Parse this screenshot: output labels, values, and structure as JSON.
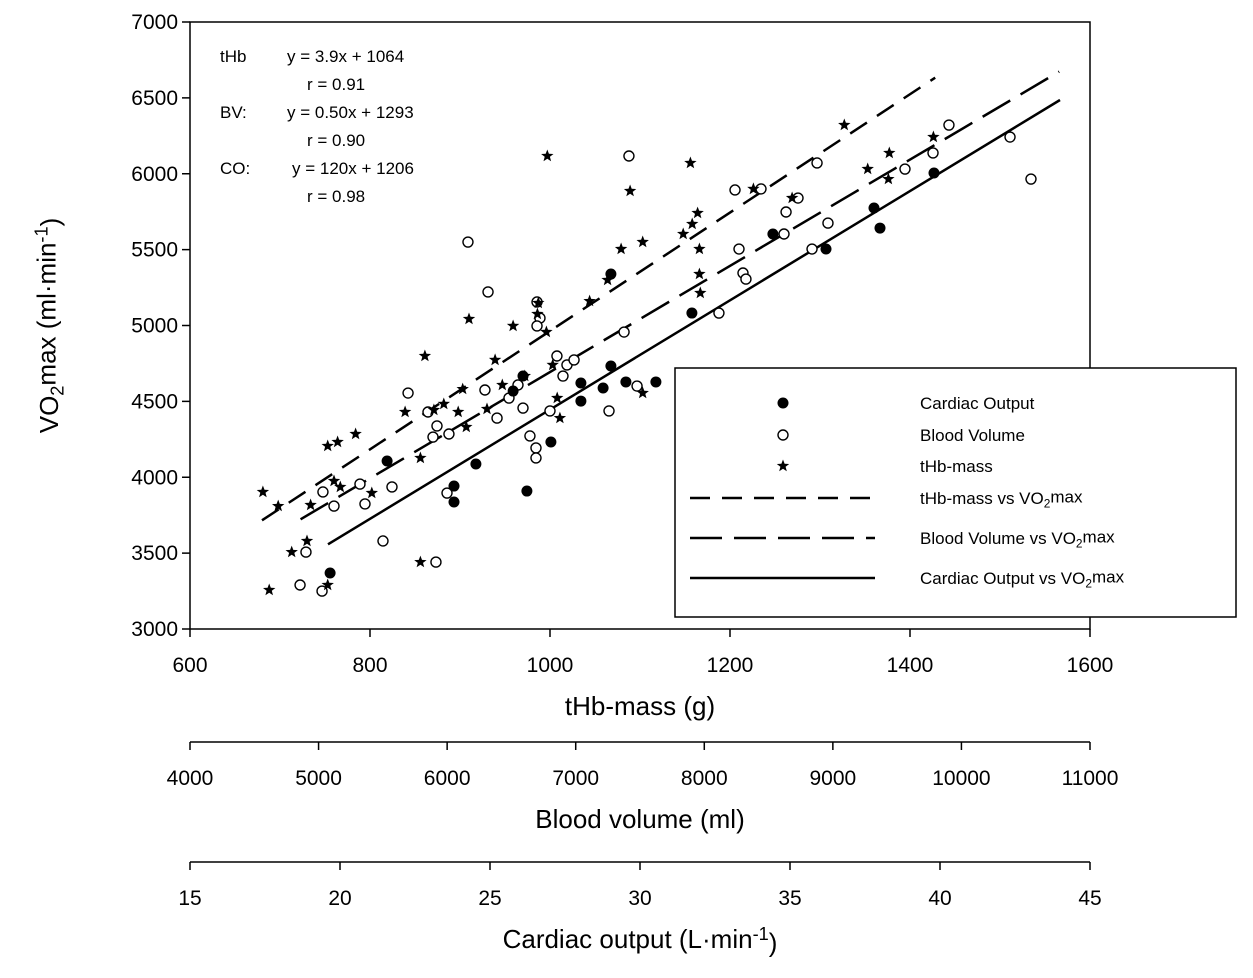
{
  "chart_data": {
    "type": "scatter",
    "ylabel": "VO2max (ml·min-1)",
    "ylabel_parts": {
      "main": "VO",
      "sub": "2",
      "rest": "max (ml·min",
      "sup": "-1",
      "end": ")"
    },
    "ylim": [
      3000,
      7000
    ],
    "yticks": [
      3000,
      3500,
      4000,
      4500,
      5000,
      5500,
      6000,
      6500,
      7000
    ],
    "x_axes": [
      {
        "key": "thb",
        "label": "tHb-mass (g)",
        "lim": [
          600,
          1600
        ],
        "ticks": [
          600,
          800,
          1000,
          1200,
          1400,
          1600
        ]
      },
      {
        "key": "bv",
        "label": "Blood volume (ml)",
        "lim": [
          4000,
          11000
        ],
        "ticks": [
          4000,
          5000,
          6000,
          7000,
          8000,
          9000,
          10000,
          11000
        ]
      },
      {
        "key": "co",
        "label": "Cardiac output (L·min-1)",
        "label_parts": {
          "main": "Cardiac output (L·min",
          "sup": "-1",
          "end": ")"
        },
        "lim": [
          15,
          45
        ],
        "ticks": [
          15,
          20,
          25,
          30,
          35,
          40,
          45
        ]
      }
    ],
    "grid": false,
    "legend_placement": "bottom-right",
    "annotations": [
      {
        "label": "tHb",
        "eq": "y = 3.9x + 1064",
        "r": "r = 0.91"
      },
      {
        "label": "BV:",
        "eq": "y = 0.50x + 1293",
        "r": "r = 0.90"
      },
      {
        "label": "CO:",
        "eq": "y = 120x + 1206",
        "r": "r = 0.98"
      }
    ],
    "series": [
      {
        "name": "Cardiac Output",
        "axis": "co",
        "marker": "filled-circle",
        "points": [
          [
            19.67,
            3369
          ],
          [
            21.57,
            4107
          ],
          [
            23.8,
            3942
          ],
          [
            23.8,
            3837
          ],
          [
            24.53,
            4087
          ],
          [
            25.77,
            4568
          ],
          [
            26.1,
            4667
          ],
          [
            26.23,
            3909
          ],
          [
            27.03,
            4232
          ],
          [
            28.03,
            4621
          ],
          [
            28.03,
            4502
          ],
          [
            28.77,
            4588
          ],
          [
            29.03,
            4733
          ],
          [
            29.03,
            5339
          ],
          [
            29.53,
            4628
          ],
          [
            30.53,
            4628
          ],
          [
            31.73,
            5082
          ],
          [
            34.43,
            5603
          ],
          [
            36.2,
            5504
          ],
          [
            37.8,
            5774
          ],
          [
            38.0,
            5642
          ],
          [
            39.8,
            6005
          ]
        ]
      },
      {
        "name": "Blood Volume",
        "axis": "bv",
        "marker": "open-circle",
        "points": [
          [
            6162,
            5550
          ],
          [
            6318,
            5221
          ],
          [
            5696,
            4555
          ],
          [
            5851,
            4430
          ],
          [
            5921,
            4338
          ],
          [
            5890,
            4265
          ],
          [
            6014,
            4285
          ],
          [
            6294,
            4575
          ],
          [
            5034,
            3903
          ],
          [
            5120,
            3810
          ],
          [
            5361,
            3824
          ],
          [
            5571,
            3936
          ],
          [
            5322,
            3955
          ],
          [
            5999,
            3896
          ],
          [
            5501,
            3580
          ],
          [
            5913,
            3441
          ],
          [
            4902,
            3507
          ],
          [
            4856,
            3290
          ],
          [
            5027,
            3250
          ],
          [
            7414,
            6117
          ],
          [
            6699,
            5155
          ],
          [
            6722,
            5049
          ],
          [
            6699,
            4997
          ],
          [
            6854,
            4799
          ],
          [
            6932,
            4740
          ],
          [
            6987,
            4773
          ],
          [
            6901,
            4667
          ],
          [
            6551,
            4608
          ],
          [
            6481,
            4522
          ],
          [
            6590,
            4456
          ],
          [
            6388,
            4390
          ],
          [
            6800,
            4437
          ],
          [
            6644,
            4272
          ],
          [
            6691,
            4193
          ],
          [
            6691,
            4127
          ],
          [
            7259,
            4437
          ],
          [
            7477,
            4601
          ],
          [
            7376,
            4957
          ],
          [
            8114,
            5082
          ],
          [
            8270,
            5504
          ],
          [
            8301,
            5346
          ],
          [
            8324,
            5306
          ],
          [
            8239,
            5893
          ],
          [
            8441,
            5900
          ],
          [
            8877,
            6071
          ],
          [
            9903,
            6321
          ],
          [
            10378,
            6242
          ],
          [
            10541,
            5965
          ],
          [
            8729,
            5840
          ],
          [
            8636,
            5748
          ],
          [
            8620,
            5603
          ],
          [
            8838,
            5504
          ],
          [
            8962,
            5675
          ],
          [
            9561,
            6031
          ],
          [
            9779,
            6137
          ]
        ]
      },
      {
        "name": "tHb-mass",
        "axis": "thb",
        "marker": "star",
        "points": [
          [
            681,
            3903
          ],
          [
            698,
            3810
          ],
          [
            730,
            3580
          ],
          [
            713,
            3507
          ],
          [
            688,
            3257
          ],
          [
            753,
            3290
          ],
          [
            753,
            4206
          ],
          [
            764,
            4232
          ],
          [
            784,
            4285
          ],
          [
            734,
            3817
          ],
          [
            760,
            3975
          ],
          [
            767,
            3936
          ],
          [
            802,
            3896
          ],
          [
            839,
            4430
          ],
          [
            861,
            4799
          ],
          [
            856,
            4127
          ],
          [
            856,
            3441
          ],
          [
            871,
            4443
          ],
          [
            882,
            4483
          ],
          [
            898,
            4430
          ],
          [
            903,
            4581
          ],
          [
            910,
            5043
          ],
          [
            930,
            4450
          ],
          [
            907,
            4331
          ],
          [
            997,
            6117
          ],
          [
            1089,
            5886
          ],
          [
            1156,
            6071
          ],
          [
            1164,
            5741
          ],
          [
            1158,
            5669
          ],
          [
            1148,
            5603
          ],
          [
            1166,
            5504
          ],
          [
            1166,
            5339
          ],
          [
            1167,
            5214
          ],
          [
            1103,
            5550
          ],
          [
            1079,
            5504
          ],
          [
            1064,
            5300
          ],
          [
            1044,
            5161
          ],
          [
            987,
            5148
          ],
          [
            986,
            5076
          ],
          [
            996,
            4957
          ],
          [
            959,
            4997
          ],
          [
            939,
            4773
          ],
          [
            947,
            4608
          ],
          [
            1003,
            4740
          ],
          [
            972,
            4667
          ],
          [
            1008,
            4522
          ],
          [
            1011,
            4390
          ],
          [
            1103,
            4555
          ],
          [
            1226,
            5900
          ],
          [
            1269,
            5840
          ],
          [
            1327,
            6321
          ],
          [
            1353,
            6031
          ],
          [
            1377,
            6137
          ],
          [
            1376,
            5965
          ],
          [
            1426,
            6242
          ]
        ]
      }
    ],
    "fits": [
      {
        "name": "tHb-mass vs VO2max",
        "label_parts": {
          "main": "tHb-mass vs VO",
          "sub": "2",
          "end": "max"
        },
        "axis": "thb",
        "slope": 3.9,
        "intercept": 1064,
        "x_range": [
          680,
          1428
        ],
        "dash": "short"
      },
      {
        "name": "Blood Volume vs VO2max",
        "label_parts": {
          "main": "Blood Volume vs VO",
          "sub": "2",
          "end": "max"
        },
        "axis": "bv",
        "slope": 0.5,
        "intercept": 1293,
        "x_range": [
          4860,
          10760
        ],
        "dash": "long"
      },
      {
        "name": "Cardiac Output vs VO2max",
        "label_parts": {
          "main": "Cardiac Output vs VO",
          "sub": "2",
          "end": "max"
        },
        "axis": "co",
        "slope": 120,
        "intercept": 1206,
        "x_range": [
          19.6,
          44
        ],
        "dash": "solid"
      }
    ]
  }
}
